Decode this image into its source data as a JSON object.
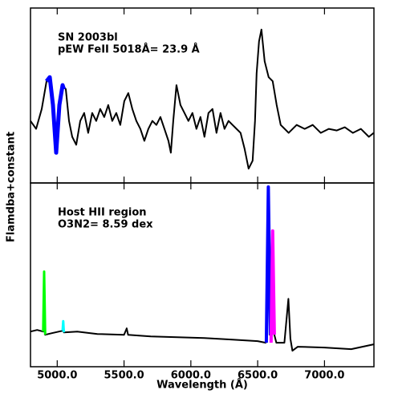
{
  "chart_data": [
    {
      "type": "line",
      "annotations": [
        "SN 2003bl",
        "pEW FeII 5018Å= 23.9 Å"
      ],
      "xlim": [
        4800,
        7370
      ],
      "ylim": [
        0,
        220
      ],
      "series": [
        {
          "color": "#000000",
          "width": 2,
          "x": [
            4800,
            4842,
            4884,
            4920,
            4944,
            4968,
            4992,
            5016,
            5040,
            5064,
            5088,
            5112,
            5142,
            5172,
            5202,
            5232,
            5262,
            5292,
            5322,
            5352,
            5382,
            5412,
            5442,
            5472,
            5502,
            5532,
            5562,
            5592,
            5622,
            5652,
            5682,
            5712,
            5742,
            5772,
            5802,
            5832,
            5850,
            5868,
            5892,
            5922,
            5952,
            5982,
            6012,
            6042,
            6072,
            6102,
            6132,
            6162,
            6192,
            6222,
            6252,
            6282,
            6312,
            6342,
            6372,
            6402,
            6432,
            6462,
            6480,
            6492,
            6510,
            6528,
            6552,
            6582,
            6612,
            6642,
            6672,
            6702,
            6732,
            6792,
            6852,
            6912,
            6972,
            7032,
            7092,
            7152,
            7212,
            7272,
            7332,
            7368
          ],
          "values": [
            78,
            68,
            93,
            128,
            133,
            98,
            38,
            98,
            123,
            118,
            78,
            58,
            48,
            78,
            88,
            63,
            88,
            78,
            93,
            83,
            98,
            78,
            88,
            73,
            103,
            113,
            93,
            78,
            68,
            53,
            68,
            78,
            73,
            83,
            68,
            53,
            38,
            78,
            123,
            98,
            88,
            78,
            88,
            68,
            83,
            58,
            88,
            93,
            63,
            88,
            68,
            78,
            73,
            68,
            63,
            43,
            18,
            28,
            78,
            138,
            178,
            193,
            153,
            133,
            128,
            98,
            73,
            68,
            63,
            73,
            68,
            73,
            63,
            68,
            66,
            70,
            63,
            68,
            58,
            63
          ]
        },
        {
          "color": "#0000ff",
          "width": 5,
          "x": [
            4920,
            4944,
            4968,
            4992,
            5016,
            5040,
            5050
          ],
          "values": [
            128,
            133,
            98,
            38,
            98,
            123,
            118
          ]
        }
      ]
    },
    {
      "type": "line",
      "annotations": [
        "Host HII region",
        "O3N2= 8.59 dex"
      ],
      "xlabel": "Wavelength (Å)",
      "ylabel": "Flamdba+constant",
      "xlim": [
        4800,
        7370
      ],
      "ylim": [
        0,
        230
      ],
      "xticks": [
        {
          "value": 5000,
          "label": "5000.0"
        },
        {
          "value": 5500,
          "label": "5500.0"
        },
        {
          "value": 6000,
          "label": "6000.0"
        },
        {
          "value": 6500,
          "label": "6500.0"
        },
        {
          "value": 7000,
          "label": "7000.0"
        }
      ],
      "series": [
        {
          "color": "#000000",
          "width": 2,
          "x": [
            4800,
            4850,
            4895,
            4902,
            4910,
            4960,
            5040,
            5045,
            5050,
            5150,
            5300,
            5500,
            5520,
            5530,
            5700,
            5900,
            6100,
            6300,
            6500,
            6560,
            6570,
            6580,
            6590,
            6610,
            6625,
            6640,
            6700,
            6730,
            6745,
            6760,
            6800,
            7000,
            7200,
            7368
          ],
          "values": [
            44,
            46,
            44,
            119,
            40,
            42,
            45,
            57,
            43,
            44,
            41,
            40,
            48,
            40,
            38,
            37,
            36,
            34,
            32,
            30,
            60,
            225,
            40,
            170,
            40,
            30,
            30,
            85,
            35,
            20,
            25,
            24,
            22,
            28
          ]
        },
        {
          "color": "#00ff00",
          "width": 3,
          "x": [
            4895,
            4902,
            4910
          ],
          "values": [
            44,
            119,
            40
          ]
        },
        {
          "color": "#00ffff",
          "width": 3,
          "x": [
            5040,
            5045,
            5050
          ],
          "values": [
            45,
            57,
            43
          ]
        },
        {
          "color": "#0000ff",
          "width": 4,
          "x": [
            6565,
            6580,
            6595
          ],
          "values": [
            30,
            225,
            40
          ]
        },
        {
          "color": "#ff00ff",
          "width": 4,
          "x": [
            6600,
            6612,
            6625
          ],
          "values": [
            30,
            170,
            40
          ]
        }
      ]
    }
  ]
}
